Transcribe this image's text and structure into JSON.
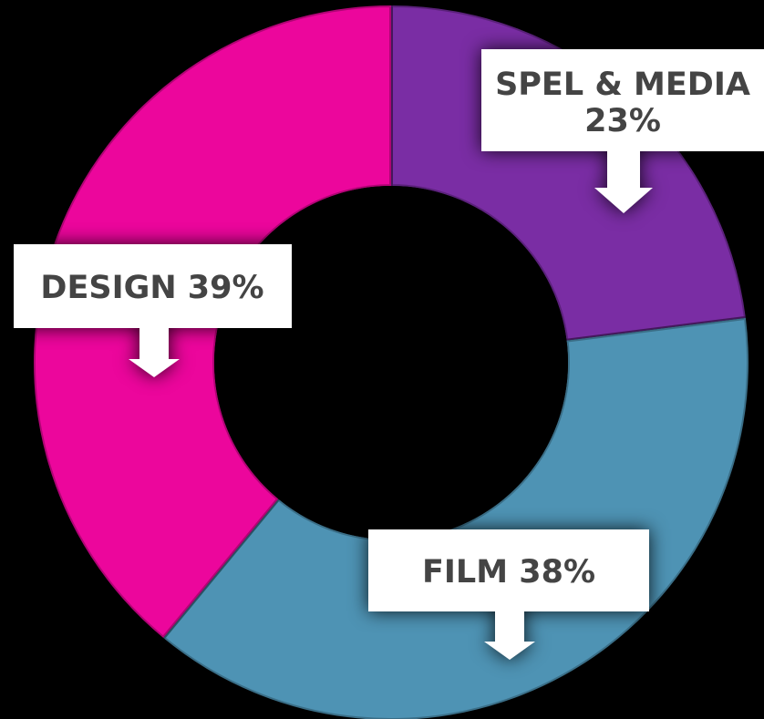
{
  "chart_data": {
    "type": "donut",
    "title": "",
    "colors": {
      "background": "#000000",
      "label_box": "#ffffff",
      "label_text": "#444444"
    },
    "slices": [
      {
        "name": "SPEL & MEDIA",
        "value": 23,
        "label": "SPEL & MEDIA\n23%",
        "color": "#7a2da4"
      },
      {
        "name": "FILM",
        "value": 38,
        "label": "FILM 38%",
        "color": "#4e93b4"
      },
      {
        "name": "DESIGN",
        "value": 39,
        "label": "DESIGN 39%",
        "color": "#ec069c"
      }
    ],
    "labels": [
      {
        "line1": "SPEL & MEDIA",
        "line2": "23%"
      },
      {
        "line1": "FILM 38%"
      },
      {
        "line1": "DESIGN 39%"
      }
    ]
  }
}
